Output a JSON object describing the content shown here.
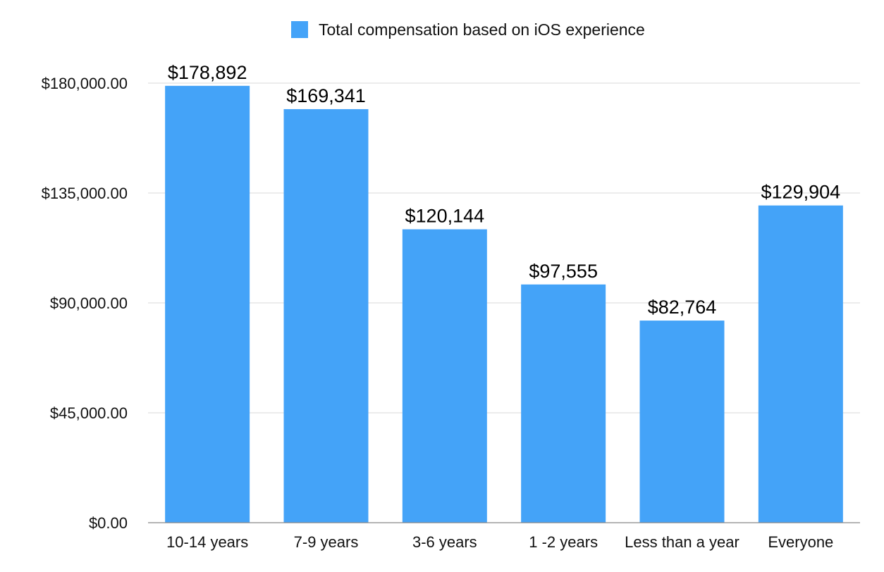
{
  "chart_data": {
    "type": "bar",
    "legend": {
      "placement": "top-center"
    },
    "series": [
      {
        "name": "Total compensation based on iOS experience",
        "color": "#44a3f8",
        "values": [
          178892,
          169341,
          120144,
          97555,
          82764,
          129904
        ],
        "data_labels": [
          "$178,892",
          "$169,341",
          "$120,144",
          "$97,555",
          "$82,764",
          "$129,904"
        ]
      }
    ],
    "categories": [
      "10-14 years",
      "7-9 years",
      "3-6 years",
      "1 -2 years",
      "Less than a year",
      "Everyone"
    ],
    "ylim": [
      0,
      180000
    ],
    "yticks": [
      0,
      45000,
      90000,
      135000,
      180000
    ],
    "ytick_labels": [
      "$0.00",
      "$45,000.00",
      "$90,000.00",
      "$135,000.00",
      "$180,000.00"
    ],
    "grid": true,
    "title": "",
    "xlabel": "",
    "ylabel": ""
  }
}
